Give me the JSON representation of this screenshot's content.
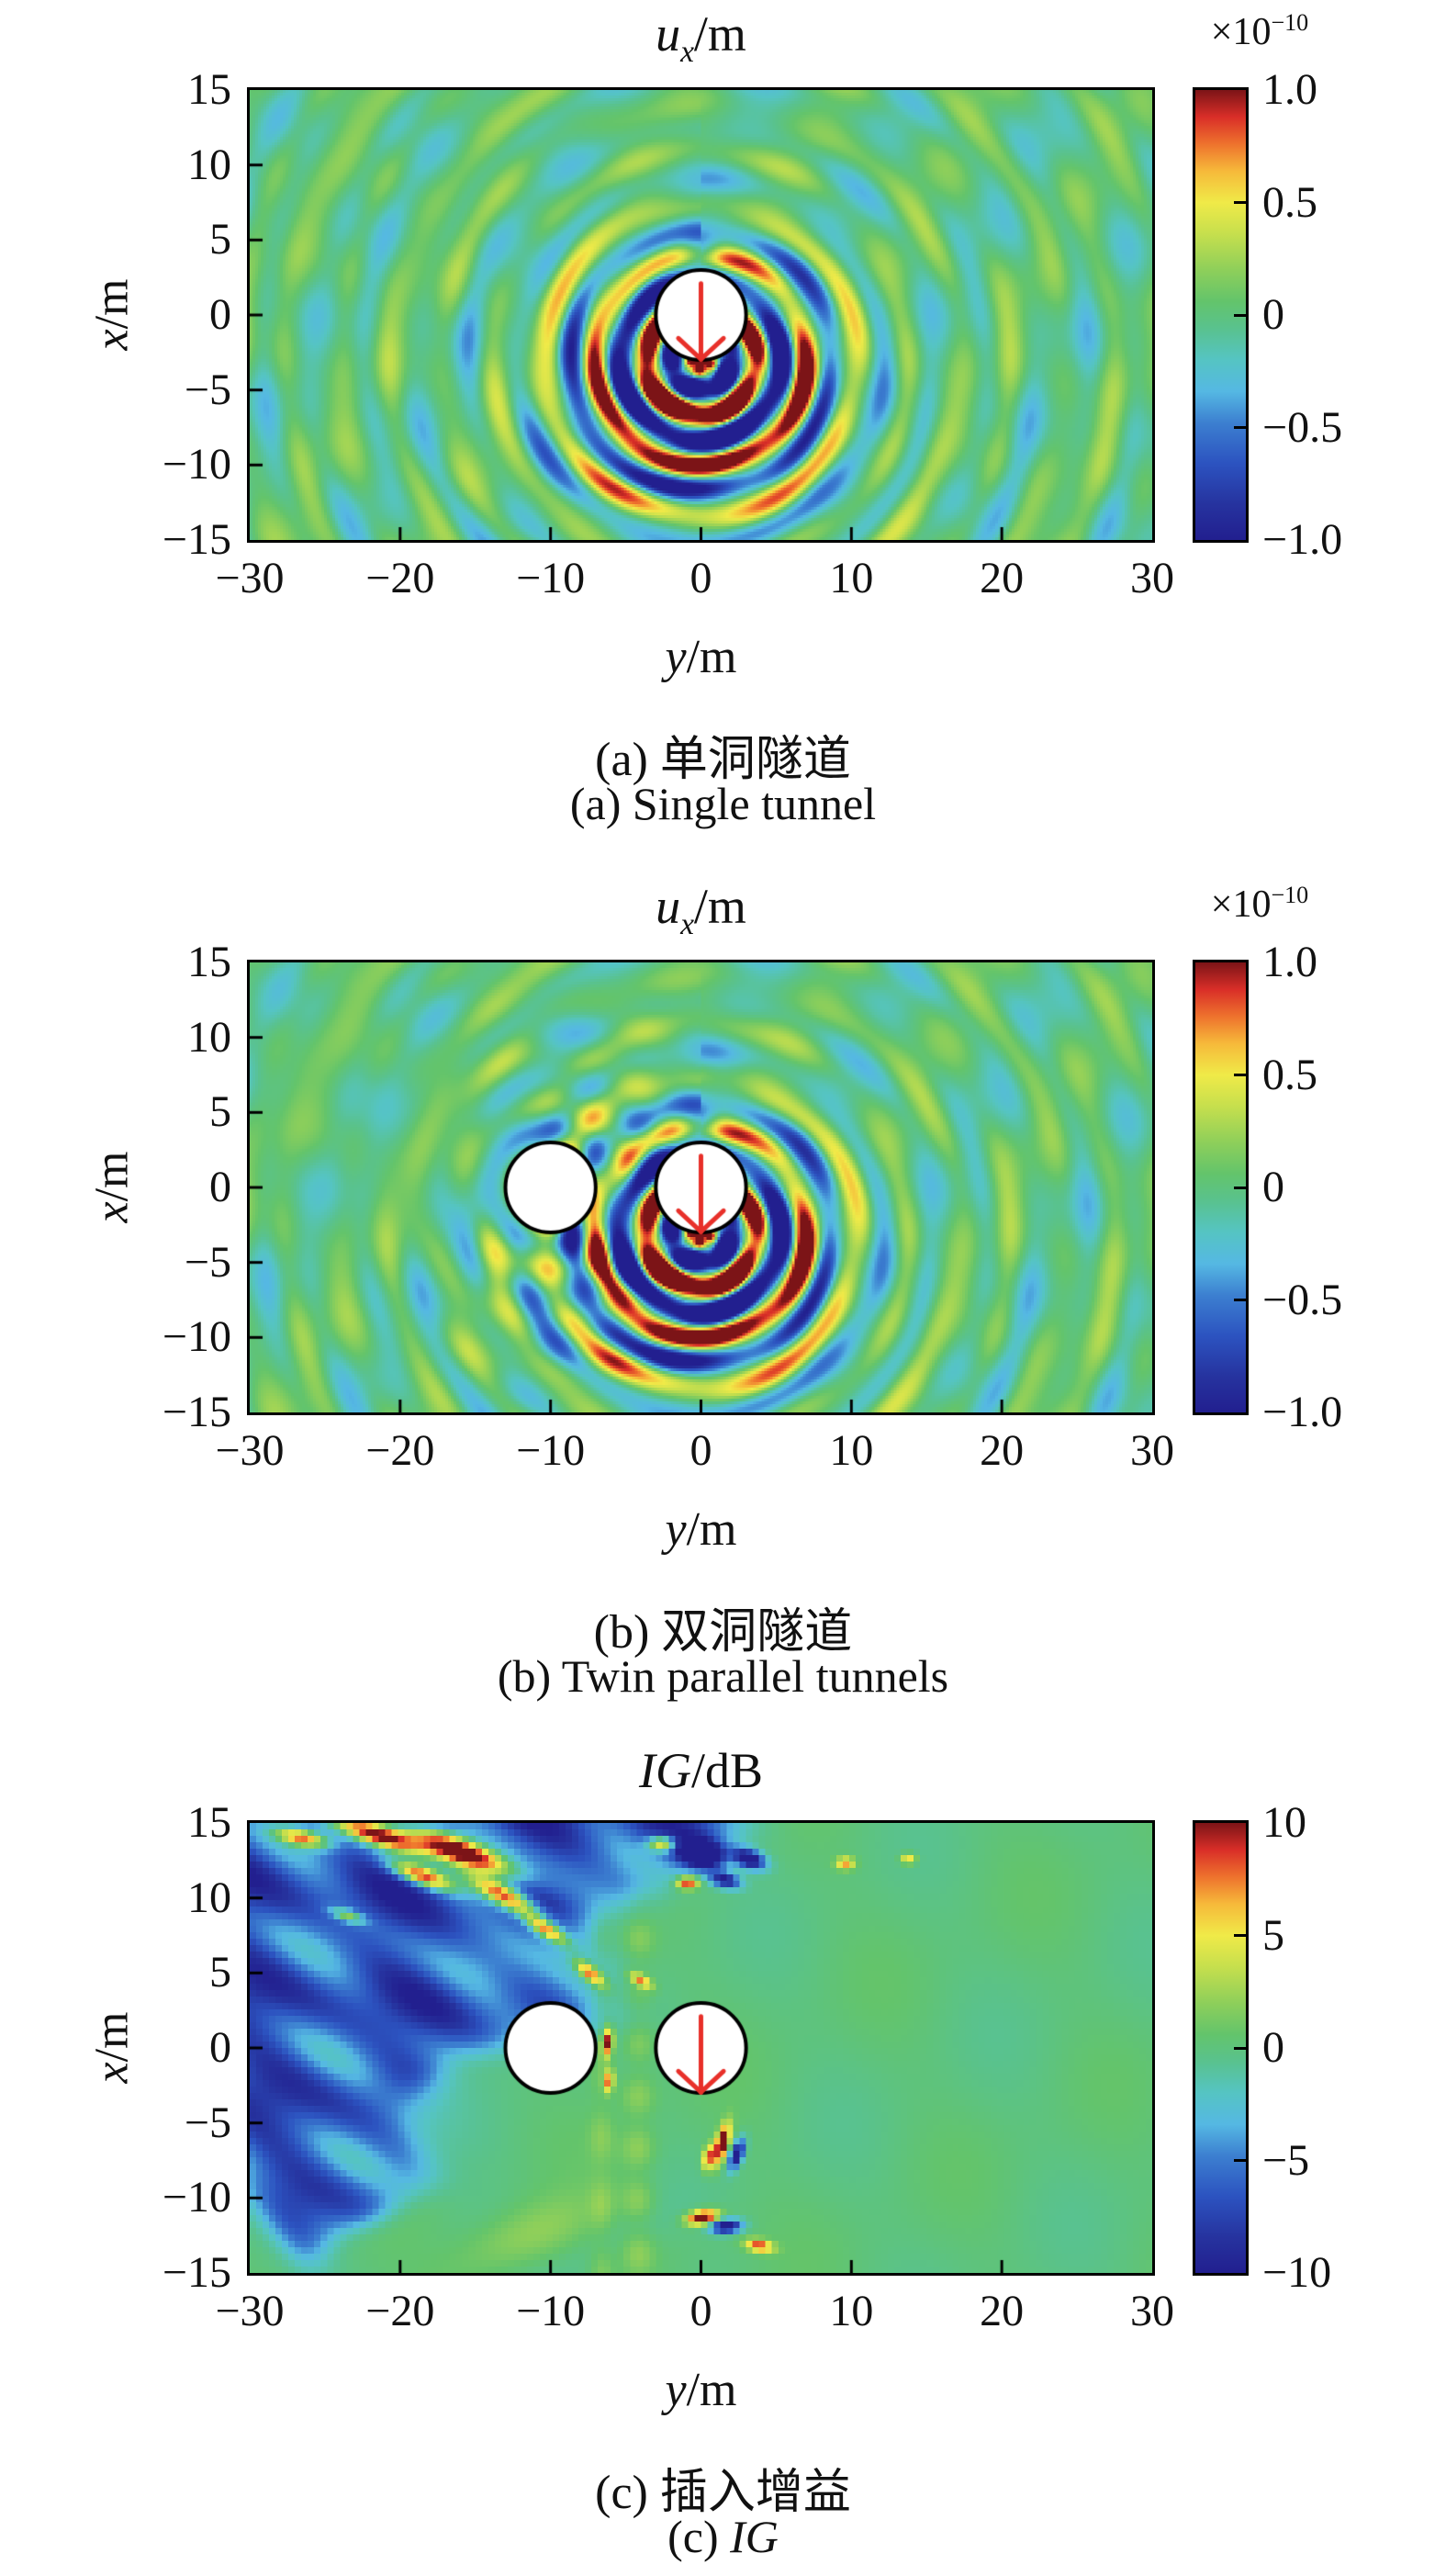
{
  "page": {
    "background": "#ffffff"
  },
  "colormap": {
    "stops": [
      [
        0.0,
        "#221f8f"
      ],
      [
        0.08,
        "#26339f"
      ],
      [
        0.17,
        "#2c53c0"
      ],
      [
        0.26,
        "#3c7fd0"
      ],
      [
        0.33,
        "#55b8e3"
      ],
      [
        0.4,
        "#55c4c3"
      ],
      [
        0.47,
        "#59c28e"
      ],
      [
        0.53,
        "#63c46b"
      ],
      [
        0.6,
        "#8ecf5a"
      ],
      [
        0.68,
        "#c6df4d"
      ],
      [
        0.75,
        "#f0ea48"
      ],
      [
        0.82,
        "#f6b93a"
      ],
      [
        0.88,
        "#ee722d"
      ],
      [
        0.94,
        "#d92e28"
      ],
      [
        1.0,
        "#7c1417"
      ]
    ],
    "tunnel_fill": "#ffffff",
    "tunnel_stroke": "#000000",
    "arrow_color": "#e8302a"
  },
  "panels": [
    {
      "id": "a",
      "title": {
        "var": "u",
        "sub": "x",
        "unit": "/m"
      },
      "multiplier": {
        "base": "×10",
        "exp": "−10"
      },
      "xlabel": {
        "var": "y",
        "unit": "/m"
      },
      "ylabel": {
        "var": "x",
        "unit": "/m"
      },
      "x_ticks": [
        "−30",
        "−20",
        "−10",
        "0",
        "10",
        "20",
        "30"
      ],
      "y_ticks": [
        "15",
        "10",
        "5",
        "0",
        "−5",
        "−10",
        "−15"
      ],
      "colorbar_labels": [
        "1.0",
        "0.5",
        "0",
        "−0.5",
        "−1.0"
      ],
      "caption_zh": "(a) 单洞隧道",
      "caption_en": "(a) Single tunnel"
    },
    {
      "id": "b",
      "title": {
        "var": "u",
        "sub": "x",
        "unit": "/m"
      },
      "multiplier": {
        "base": "×10",
        "exp": "−10"
      },
      "xlabel": {
        "var": "y",
        "unit": "/m"
      },
      "ylabel": {
        "var": "x",
        "unit": "/m"
      },
      "x_ticks": [
        "−30",
        "−20",
        "−10",
        "0",
        "10",
        "20",
        "30"
      ],
      "y_ticks": [
        "15",
        "10",
        "5",
        "0",
        "−5",
        "−10",
        "−15"
      ],
      "colorbar_labels": [
        "1.0",
        "0.5",
        "0",
        "−0.5",
        "−1.0"
      ],
      "caption_zh": "(b) 双洞隧道",
      "caption_en": "(b) Twin parallel tunnels"
    },
    {
      "id": "c",
      "title": {
        "var": "IG",
        "sub": "",
        "unit": "/dB"
      },
      "multiplier": null,
      "xlabel": {
        "var": "y",
        "unit": "/m"
      },
      "ylabel": {
        "var": "x",
        "unit": "/m"
      },
      "x_ticks": [
        "−30",
        "−20",
        "−10",
        "0",
        "10",
        "20",
        "30"
      ],
      "y_ticks": [
        "15",
        "10",
        "5",
        "0",
        "−5",
        "−10",
        "−15"
      ],
      "colorbar_labels": [
        "10",
        "5",
        "0",
        "−5",
        "−10"
      ],
      "caption_zh": "(c) 插入增益",
      "caption_en": "(c) IG"
    }
  ],
  "chart_data": [
    {
      "type": "heatmap",
      "panel": "a",
      "title": "u_x/m",
      "xlabel": "y/m",
      "ylabel": "x/m",
      "x_range": [
        -30,
        30
      ],
      "y_range": [
        -15,
        15
      ],
      "x_tick_values": [
        -30,
        -20,
        -10,
        0,
        10,
        20,
        30
      ],
      "y_tick_values": [
        15,
        10,
        5,
        0,
        -5,
        -10,
        -15
      ],
      "value_unit": "m",
      "value_scale": 1e-10,
      "clim": [
        -1.0,
        1.0
      ],
      "colorbar_ticks": [
        1.0,
        0.5,
        0,
        -0.5,
        -1.0
      ],
      "mode": "wave",
      "twin": false,
      "wavelength": 3.4,
      "source": {
        "y": 0,
        "x": -3
      },
      "tunnels": [
        {
          "y": 0,
          "x": 0,
          "radius": 3,
          "arrow": true
        }
      ]
    },
    {
      "type": "heatmap",
      "panel": "b",
      "title": "u_x/m",
      "xlabel": "y/m",
      "ylabel": "x/m",
      "x_range": [
        -30,
        30
      ],
      "y_range": [
        -15,
        15
      ],
      "x_tick_values": [
        -30,
        -20,
        -10,
        0,
        10,
        20,
        30
      ],
      "y_tick_values": [
        15,
        10,
        5,
        0,
        -5,
        -10,
        -15
      ],
      "value_unit": "m",
      "value_scale": 1e-10,
      "clim": [
        -1.0,
        1.0
      ],
      "colorbar_ticks": [
        1.0,
        0.5,
        0,
        -0.5,
        -1.0
      ],
      "mode": "wave",
      "twin": true,
      "wavelength": 3.4,
      "source": {
        "y": 0,
        "x": -3
      },
      "tunnels": [
        {
          "y": -10,
          "x": 0,
          "radius": 3,
          "arrow": false
        },
        {
          "y": 0,
          "x": 0,
          "radius": 3,
          "arrow": true
        }
      ]
    },
    {
      "type": "heatmap",
      "panel": "c",
      "title": "IG/dB",
      "xlabel": "y/m",
      "ylabel": "x/m",
      "x_range": [
        -30,
        30
      ],
      "y_range": [
        -15,
        15
      ],
      "x_tick_values": [
        -30,
        -20,
        -10,
        0,
        10,
        20,
        30
      ],
      "y_tick_values": [
        15,
        10,
        5,
        0,
        -5,
        -10,
        -15
      ],
      "value_unit": "dB",
      "clim": [
        -10,
        10
      ],
      "colorbar_ticks": [
        10,
        5,
        0,
        -5,
        -10
      ],
      "mode": "ig",
      "tunnels": [
        {
          "y": -10,
          "x": 0,
          "radius": 3,
          "arrow": false
        },
        {
          "y": 0,
          "x": 0,
          "radius": 3,
          "arrow": true
        }
      ],
      "wedge": {
        "y0": -13,
        "slope": 0.82,
        "deep_level": -6.5
      },
      "blobs": [
        [
          -21.5,
          14.2,
          -18,
          3.2,
          0.75,
          16
        ],
        [
          -16.0,
          13.1,
          -22,
          3.6,
          0.85,
          18
        ],
        [
          -18.6,
          11.5,
          -20,
          2.2,
          0.6,
          14
        ],
        [
          -13.0,
          10.1,
          -28,
          2.6,
          0.7,
          16
        ],
        [
          -26.5,
          14.0,
          -12,
          1.8,
          0.55,
          12
        ],
        [
          -10.3,
          7.9,
          -32,
          1.6,
          0.5,
          13
        ],
        [
          -7.4,
          5.0,
          -40,
          1.2,
          0.45,
          10
        ],
        [
          -23.5,
          8.8,
          -18,
          1.2,
          0.4,
          8
        ],
        [
          -2.6,
          13.6,
          0,
          0.9,
          0.5,
          12
        ],
        [
          0.1,
          12.9,
          -10,
          1.3,
          0.8,
          -15
        ],
        [
          3.2,
          12.6,
          -20,
          1.1,
          0.6,
          -12
        ],
        [
          1.6,
          11.2,
          -15,
          1.0,
          0.5,
          -10
        ],
        [
          -0.9,
          11.0,
          0,
          0.7,
          0.4,
          10
        ],
        [
          9.6,
          12.3,
          0,
          0.6,
          0.4,
          7
        ],
        [
          13.8,
          12.6,
          0,
          0.5,
          0.35,
          6
        ],
        [
          1.4,
          -6.4,
          75,
          1.3,
          0.4,
          13
        ],
        [
          2.4,
          -7.1,
          70,
          1.0,
          0.4,
          -12
        ],
        [
          0.5,
          -7.3,
          80,
          0.8,
          0.35,
          9
        ],
        [
          0.1,
          -11.3,
          10,
          1.0,
          0.45,
          13
        ],
        [
          1.7,
          -11.9,
          5,
          1.0,
          0.45,
          -12
        ],
        [
          3.9,
          -13.2,
          -10,
          0.9,
          0.4,
          9
        ],
        [
          -6.2,
          0.4,
          85,
          0.9,
          0.35,
          11
        ],
        [
          -6.1,
          -2.2,
          85,
          0.7,
          0.3,
          8
        ],
        [
          -4.0,
          4.5,
          -30,
          0.8,
          0.35,
          7
        ]
      ]
    }
  ]
}
